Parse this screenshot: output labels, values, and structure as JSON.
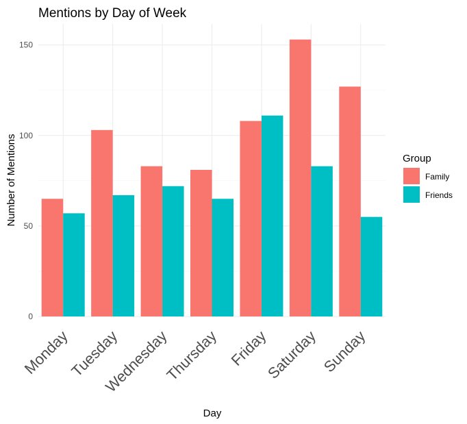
{
  "chart_data": {
    "type": "bar",
    "title": "Mentions by Day of Week",
    "xlabel": "Day",
    "ylabel": "Number of Mentions",
    "categories": [
      "Monday",
      "Tuesday",
      "Wednesday",
      "Thursday",
      "Friday",
      "Saturday",
      "Sunday"
    ],
    "series": [
      {
        "name": "Family",
        "color": "#F8766D",
        "values": [
          65,
          103,
          83,
          81,
          108,
          153,
          127
        ]
      },
      {
        "name": "Friends",
        "color": "#00BFC4",
        "values": [
          57,
          67,
          72,
          65,
          111,
          83,
          55
        ]
      }
    ],
    "ylim": [
      0,
      160
    ],
    "yticks": [
      0,
      50,
      100,
      150
    ],
    "grid": true,
    "legend": {
      "title": "Group",
      "position": "right"
    }
  }
}
